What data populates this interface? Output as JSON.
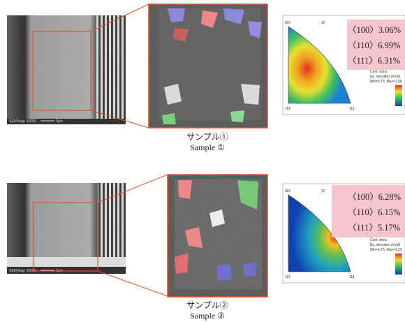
{
  "panels": [
    {
      "sem": {
        "mag": "SEM Mag: 10000",
        "scale": "3μm"
      },
      "pole": {
        "top": "001",
        "left": "101",
        "right": "111",
        "arc": "20",
        "legend": [
          "Cont. dens.",
          "Eq. densities (mud)",
          "Min=0.75, Max=1.96"
        ],
        "orientations": [
          "〈100〉3.06%",
          "〈110〉6.99%",
          "〈111〉6.31%"
        ]
      },
      "caption_jp": "サンプル①",
      "caption_en": "Sample ①"
    },
    {
      "sem": {
        "mag": "SEM Mag: 10000",
        "scale": "3μm"
      },
      "pole": {
        "top": "001",
        "left": "101",
        "right": "111",
        "arc": "20",
        "legend": [
          "Cont. dens.",
          "Eq. densities (mud)",
          "Min=0.75, Max=3.23"
        ],
        "orientations": [
          "〈100〉6.28%",
          "〈110〉6.15%",
          "〈111〉5.17%"
        ]
      },
      "caption_jp": "サンプル②",
      "caption_en": "Sample ②"
    }
  ]
}
